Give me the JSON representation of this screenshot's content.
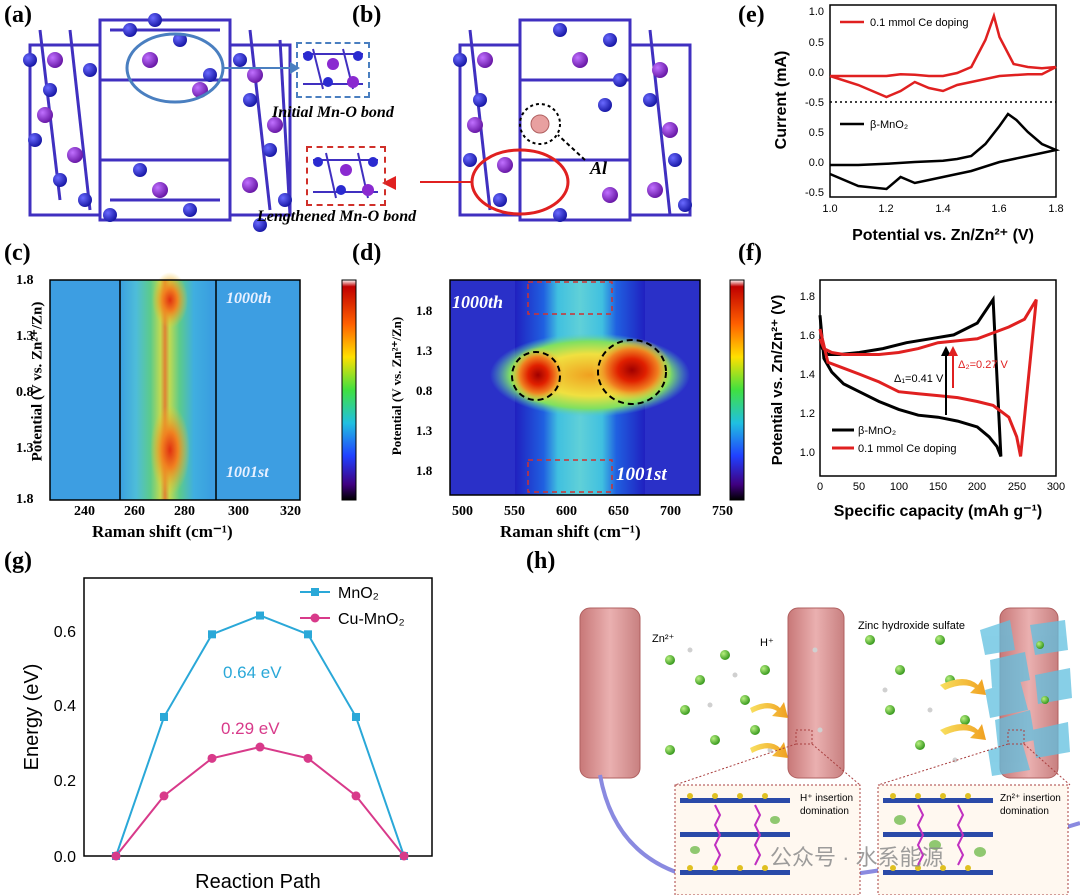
{
  "labels": {
    "a": "(a)",
    "b": "(b)",
    "c": "(c)",
    "d": "(d)",
    "e": "(e)",
    "f": "(f)",
    "g": "(g)",
    "h": "(h)"
  },
  "panel_a": {
    "caption": "Initial Mn-O bond"
  },
  "panel_b": {
    "caption": "Lengthened Mn-O bond",
    "al_label": "Al"
  },
  "panel_c": {
    "ylabel": "Potential (V vs Zn²⁺/Zn)",
    "xlabel": "Raman shift (cm⁻¹)",
    "yticks": [
      "1.8",
      "1.3",
      "0.8",
      "1.3",
      "1.8"
    ],
    "xticks": [
      "240",
      "260",
      "280",
      "300",
      "320"
    ],
    "tag_top": "1000th",
    "tag_bottom": "1001st"
  },
  "panel_d": {
    "ylabel": "Potential (V vs. Zn²⁺/Zn)",
    "xlabel": "Raman shift (cm⁻¹)",
    "yticks": [
      "1.8",
      "1.3",
      "0.8",
      "1.3",
      "1.8"
    ],
    "xticks": [
      "500",
      "550",
      "600",
      "650",
      "700",
      "750"
    ],
    "tag_top": "1000th",
    "tag_bottom": "1001st"
  },
  "chart_data": [
    {
      "type": "line",
      "panel": "e",
      "xlabel": "Potential vs. Zn/Zn²⁺ (V)",
      "ylabel": "Current (mA)",
      "xticks": [
        "1.0",
        "1.2",
        "1.4",
        "1.6",
        "1.8"
      ],
      "yticks_top": [
        "1.0",
        "0.5",
        "0.0"
      ],
      "yticks_bottom": [
        "-0.5",
        "0.5",
        "0.0",
        "-0.5"
      ],
      "divider": "-0.5",
      "series": [
        {
          "name": "0.1 mmol Ce doping",
          "color": "#e02020",
          "x": [
            1.0,
            1.1,
            1.2,
            1.25,
            1.3,
            1.35,
            1.4,
            1.45,
            1.5,
            1.55,
            1.58,
            1.6,
            1.65,
            1.7,
            1.75,
            1.8,
            1.75,
            1.7,
            1.6,
            1.5,
            1.45,
            1.4,
            1.35,
            1.3,
            1.25,
            1.2,
            1.1,
            1.0
          ],
          "y": [
            -0.05,
            -0.05,
            -0.05,
            -0.02,
            -0.03,
            -0.05,
            -0.05,
            0.0,
            0.1,
            0.55,
            0.95,
            0.6,
            0.15,
            0.1,
            0.08,
            0.1,
            -0.02,
            -0.02,
            -0.05,
            -0.15,
            -0.2,
            -0.3,
            -0.25,
            -0.15,
            -0.3,
            -0.4,
            -0.2,
            -0.05
          ]
        },
        {
          "name": "β-MnO₂",
          "color": "#000000",
          "x": [
            1.0,
            1.1,
            1.2,
            1.3,
            1.4,
            1.45,
            1.5,
            1.55,
            1.6,
            1.63,
            1.66,
            1.7,
            1.75,
            1.8,
            1.75,
            1.7,
            1.6,
            1.5,
            1.45,
            1.4,
            1.35,
            1.3,
            1.25,
            1.2,
            1.1,
            1.0
          ],
          "y": [
            -0.05,
            -0.05,
            -0.03,
            0.0,
            0.02,
            0.05,
            0.1,
            0.3,
            0.6,
            0.8,
            0.7,
            0.5,
            0.3,
            0.2,
            0.15,
            0.1,
            0.0,
            -0.15,
            -0.2,
            -0.25,
            -0.3,
            -0.35,
            -0.25,
            -0.45,
            -0.4,
            -0.2
          ]
        }
      ]
    },
    {
      "type": "line",
      "panel": "f",
      "xlabel": "Specific capacity (mAh g⁻¹)",
      "ylabel": "Potential vs. Zn/Zn²⁺ (V)",
      "xlim": [
        0,
        300
      ],
      "ylim": [
        0.9,
        1.9
      ],
      "xticks": [
        "0",
        "50",
        "100",
        "150",
        "200",
        "250",
        "300"
      ],
      "yticks": [
        "1.0",
        "1.2",
        "1.4",
        "1.6",
        "1.8"
      ],
      "annotations": [
        "Δ₁=0.41 V",
        "Δ₂=0.27 V"
      ],
      "series": [
        {
          "name": "β-MnO₂",
          "color": "#000000",
          "x": [
            0,
            5,
            15,
            30,
            50,
            75,
            100,
            125,
            150,
            175,
            200,
            215,
            225,
            230,
            220,
            200,
            170,
            140,
            110,
            80,
            50,
            25,
            10,
            3,
            0
          ],
          "y": [
            1.72,
            1.5,
            1.43,
            1.37,
            1.33,
            1.28,
            1.24,
            1.21,
            1.2,
            1.18,
            1.15,
            1.1,
            1.05,
            1.0,
            1.8,
            1.68,
            1.62,
            1.6,
            1.58,
            1.55,
            1.53,
            1.52,
            1.52,
            1.55,
            1.6
          ]
        },
        {
          "name": "0.1 mmol Ce doping",
          "color": "#e02020",
          "x": [
            0,
            10,
            30,
            50,
            75,
            100,
            125,
            150,
            175,
            200,
            220,
            240,
            250,
            255,
            275,
            260,
            240,
            220,
            200,
            175,
            150,
            125,
            100,
            75,
            50,
            30,
            15,
            5,
            0
          ],
          "y": [
            1.65,
            1.48,
            1.45,
            1.42,
            1.38,
            1.33,
            1.32,
            1.31,
            1.3,
            1.28,
            1.26,
            1.2,
            1.1,
            1.0,
            1.8,
            1.7,
            1.66,
            1.63,
            1.6,
            1.59,
            1.58,
            1.55,
            1.53,
            1.52,
            1.52,
            1.52,
            1.53,
            1.55,
            1.6
          ]
        }
      ]
    },
    {
      "type": "line",
      "panel": "g",
      "xlabel": "Reaction Path",
      "ylabel": "Energy (eV)",
      "ylim": [
        0.0,
        0.7
      ],
      "yticks": [
        "0.0",
        "0.2",
        "0.4",
        "0.6"
      ],
      "annotations": [
        "0.64 eV",
        "0.29 eV"
      ],
      "series": [
        {
          "name": "MnO₂",
          "color": "#2aa8d8",
          "x": [
            0,
            1,
            2,
            3,
            4,
            5,
            6
          ],
          "y": [
            0.0,
            0.37,
            0.59,
            0.64,
            0.59,
            0.37,
            0.0
          ]
        },
        {
          "name": "Cu-MnO₂",
          "color": "#d83a8a",
          "x": [
            0,
            1,
            2,
            3,
            4,
            5,
            6
          ],
          "y": [
            0.0,
            0.16,
            0.26,
            0.29,
            0.26,
            0.16,
            0.0
          ]
        }
      ]
    }
  ],
  "panel_h": {
    "zn_label": "Zn²⁺",
    "h_label": "H⁺",
    "zhs_label": "Zinc hydroxide sulfate",
    "h_insertion": "H⁺ insertion domination",
    "zn_insertion": "Zn²⁺ insertion domination"
  },
  "watermark": "公众号 · 水系能源"
}
